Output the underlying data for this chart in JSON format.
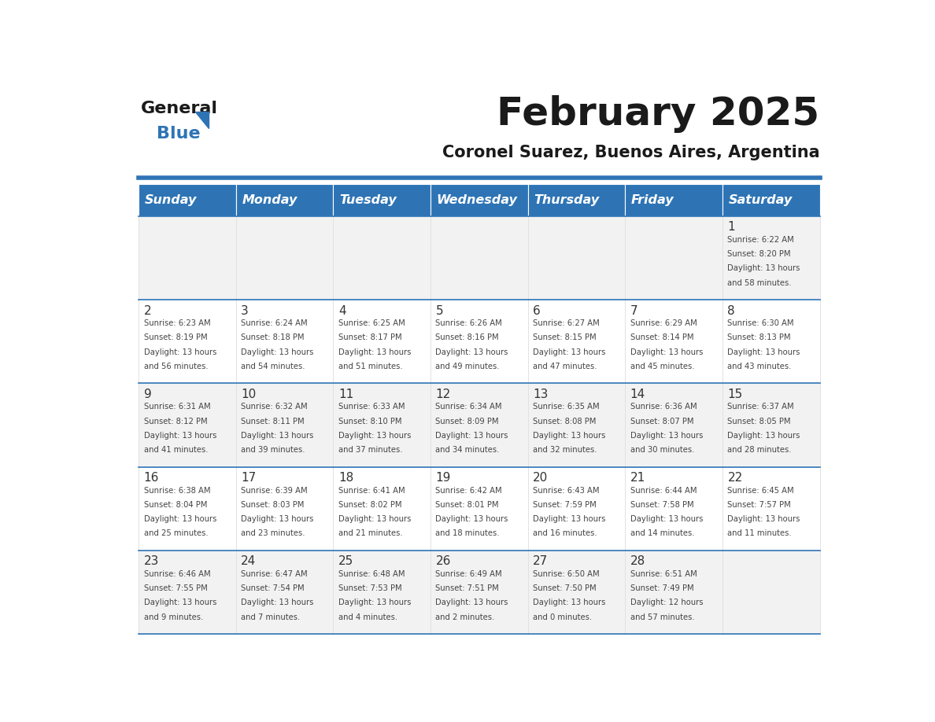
{
  "title": "February 2025",
  "subtitle": "Coronel Suarez, Buenos Aires, Argentina",
  "days_of_week": [
    "Sunday",
    "Monday",
    "Tuesday",
    "Wednesday",
    "Thursday",
    "Friday",
    "Saturday"
  ],
  "header_bg": "#2E74B5",
  "header_text_color": "#FFFFFF",
  "cell_bg_even": "#F2F2F2",
  "cell_bg_odd": "#FFFFFF",
  "separator_color": "#2E74B5",
  "grid_line_color": "#CCCCCC",
  "text_color": "#444444",
  "day_num_color": "#333333",
  "title_color": "#1a1a1a",
  "logo_general_color": "#1a1a1a",
  "logo_blue_color": "#2E74B5",
  "logo_triangle_color": "#2E74B5",
  "calendar_data": [
    {
      "day": 1,
      "row": 0,
      "col": 6,
      "sunrise": "6:22 AM",
      "sunset": "8:20 PM",
      "daylight_hours": 13,
      "daylight_minutes": 58
    },
    {
      "day": 2,
      "row": 1,
      "col": 0,
      "sunrise": "6:23 AM",
      "sunset": "8:19 PM",
      "daylight_hours": 13,
      "daylight_minutes": 56
    },
    {
      "day": 3,
      "row": 1,
      "col": 1,
      "sunrise": "6:24 AM",
      "sunset": "8:18 PM",
      "daylight_hours": 13,
      "daylight_minutes": 54
    },
    {
      "day": 4,
      "row": 1,
      "col": 2,
      "sunrise": "6:25 AM",
      "sunset": "8:17 PM",
      "daylight_hours": 13,
      "daylight_minutes": 51
    },
    {
      "day": 5,
      "row": 1,
      "col": 3,
      "sunrise": "6:26 AM",
      "sunset": "8:16 PM",
      "daylight_hours": 13,
      "daylight_minutes": 49
    },
    {
      "day": 6,
      "row": 1,
      "col": 4,
      "sunrise": "6:27 AM",
      "sunset": "8:15 PM",
      "daylight_hours": 13,
      "daylight_minutes": 47
    },
    {
      "day": 7,
      "row": 1,
      "col": 5,
      "sunrise": "6:29 AM",
      "sunset": "8:14 PM",
      "daylight_hours": 13,
      "daylight_minutes": 45
    },
    {
      "day": 8,
      "row": 1,
      "col": 6,
      "sunrise": "6:30 AM",
      "sunset": "8:13 PM",
      "daylight_hours": 13,
      "daylight_minutes": 43
    },
    {
      "day": 9,
      "row": 2,
      "col": 0,
      "sunrise": "6:31 AM",
      "sunset": "8:12 PM",
      "daylight_hours": 13,
      "daylight_minutes": 41
    },
    {
      "day": 10,
      "row": 2,
      "col": 1,
      "sunrise": "6:32 AM",
      "sunset": "8:11 PM",
      "daylight_hours": 13,
      "daylight_minutes": 39
    },
    {
      "day": 11,
      "row": 2,
      "col": 2,
      "sunrise": "6:33 AM",
      "sunset": "8:10 PM",
      "daylight_hours": 13,
      "daylight_minutes": 37
    },
    {
      "day": 12,
      "row": 2,
      "col": 3,
      "sunrise": "6:34 AM",
      "sunset": "8:09 PM",
      "daylight_hours": 13,
      "daylight_minutes": 34
    },
    {
      "day": 13,
      "row": 2,
      "col": 4,
      "sunrise": "6:35 AM",
      "sunset": "8:08 PM",
      "daylight_hours": 13,
      "daylight_minutes": 32
    },
    {
      "day": 14,
      "row": 2,
      "col": 5,
      "sunrise": "6:36 AM",
      "sunset": "8:07 PM",
      "daylight_hours": 13,
      "daylight_minutes": 30
    },
    {
      "day": 15,
      "row": 2,
      "col": 6,
      "sunrise": "6:37 AM",
      "sunset": "8:05 PM",
      "daylight_hours": 13,
      "daylight_minutes": 28
    },
    {
      "day": 16,
      "row": 3,
      "col": 0,
      "sunrise": "6:38 AM",
      "sunset": "8:04 PM",
      "daylight_hours": 13,
      "daylight_minutes": 25
    },
    {
      "day": 17,
      "row": 3,
      "col": 1,
      "sunrise": "6:39 AM",
      "sunset": "8:03 PM",
      "daylight_hours": 13,
      "daylight_minutes": 23
    },
    {
      "day": 18,
      "row": 3,
      "col": 2,
      "sunrise": "6:41 AM",
      "sunset": "8:02 PM",
      "daylight_hours": 13,
      "daylight_minutes": 21
    },
    {
      "day": 19,
      "row": 3,
      "col": 3,
      "sunrise": "6:42 AM",
      "sunset": "8:01 PM",
      "daylight_hours": 13,
      "daylight_minutes": 18
    },
    {
      "day": 20,
      "row": 3,
      "col": 4,
      "sunrise": "6:43 AM",
      "sunset": "7:59 PM",
      "daylight_hours": 13,
      "daylight_minutes": 16
    },
    {
      "day": 21,
      "row": 3,
      "col": 5,
      "sunrise": "6:44 AM",
      "sunset": "7:58 PM",
      "daylight_hours": 13,
      "daylight_minutes": 14
    },
    {
      "day": 22,
      "row": 3,
      "col": 6,
      "sunrise": "6:45 AM",
      "sunset": "7:57 PM",
      "daylight_hours": 13,
      "daylight_minutes": 11
    },
    {
      "day": 23,
      "row": 4,
      "col": 0,
      "sunrise": "6:46 AM",
      "sunset": "7:55 PM",
      "daylight_hours": 13,
      "daylight_minutes": 9
    },
    {
      "day": 24,
      "row": 4,
      "col": 1,
      "sunrise": "6:47 AM",
      "sunset": "7:54 PM",
      "daylight_hours": 13,
      "daylight_minutes": 7
    },
    {
      "day": 25,
      "row": 4,
      "col": 2,
      "sunrise": "6:48 AM",
      "sunset": "7:53 PM",
      "daylight_hours": 13,
      "daylight_minutes": 4
    },
    {
      "day": 26,
      "row": 4,
      "col": 3,
      "sunrise": "6:49 AM",
      "sunset": "7:51 PM",
      "daylight_hours": 13,
      "daylight_minutes": 2
    },
    {
      "day": 27,
      "row": 4,
      "col": 4,
      "sunrise": "6:50 AM",
      "sunset": "7:50 PM",
      "daylight_hours": 13,
      "daylight_minutes": 0
    },
    {
      "day": 28,
      "row": 4,
      "col": 5,
      "sunrise": "6:51 AM",
      "sunset": "7:49 PM",
      "daylight_hours": 12,
      "daylight_minutes": 57
    }
  ],
  "num_rows": 5
}
